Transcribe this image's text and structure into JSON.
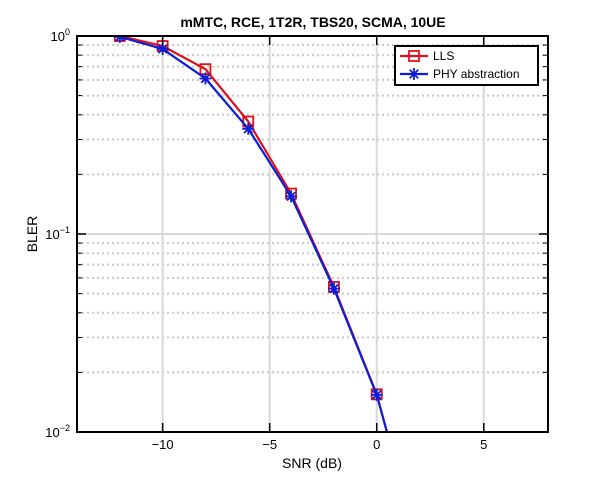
{
  "chart_data": {
    "type": "line",
    "title": "mMTC, RCE, 1T2R, TBS20, SCMA, 10UE",
    "xlabel": "SNR (dB)",
    "ylabel": "BLER",
    "xlim": [
      -14,
      8
    ],
    "ylim": [
      0.01,
      1
    ],
    "yscale": "log",
    "grid": true,
    "legend_position": "top-right",
    "x_ticks": [
      -10,
      -5,
      0,
      5
    ],
    "x_tick_labels": [
      "−10",
      "−5",
      "0",
      "5"
    ],
    "y_ticks": [
      0.01,
      0.1,
      1
    ],
    "y_tick_labels": [
      {
        "base": "10",
        "exp": "−2"
      },
      {
        "base": "10",
        "exp": "−1"
      },
      {
        "base": "10",
        "exp": "0"
      }
    ],
    "series": [
      {
        "name": "LLS",
        "color": "#e0101b",
        "marker": "square",
        "x": [
          -12,
          -10,
          -8,
          -6,
          -4,
          -2,
          0,
          0.5
        ],
        "y": [
          1.0,
          0.89,
          0.68,
          0.37,
          0.16,
          0.054,
          0.0155,
          0.0098
        ]
      },
      {
        "name": "PHY abstraction",
        "color": "#0a1fd6",
        "marker": "asterisk",
        "x": [
          -12,
          -10,
          -8,
          -6,
          -4,
          -2,
          0,
          0.5
        ],
        "y": [
          0.99,
          0.86,
          0.61,
          0.34,
          0.155,
          0.053,
          0.0154,
          0.0098
        ]
      }
    ]
  }
}
